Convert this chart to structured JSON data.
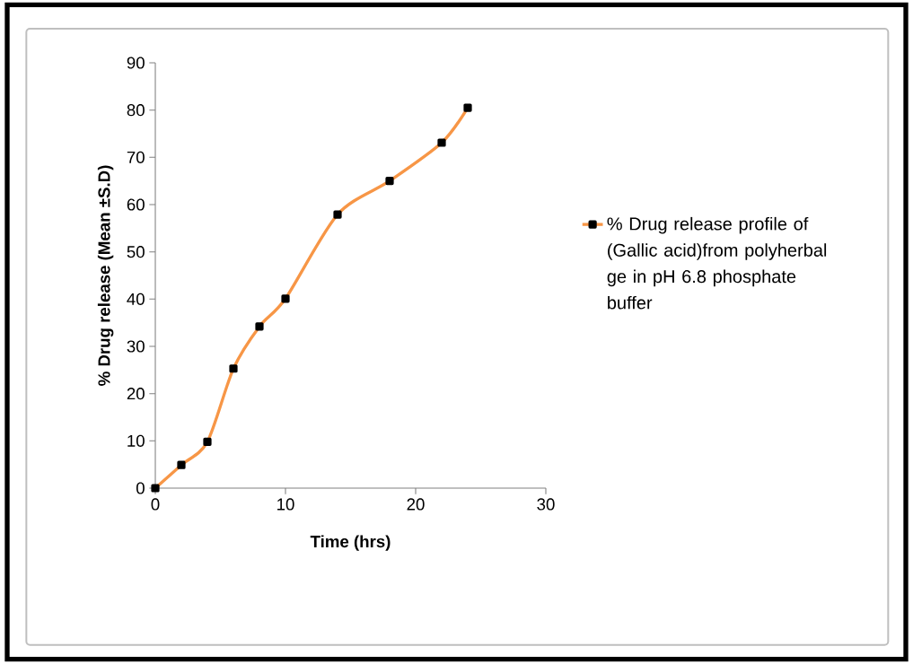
{
  "chart_data": {
    "type": "line",
    "xlabel": "Time (hrs)",
    "ylabel": "% Drug release  (Mean  ±S.D)",
    "x": [
      0,
      2,
      4,
      6,
      8,
      10,
      14,
      18,
      22,
      24
    ],
    "series": [
      {
        "name": "% Drug release profile of (Gallic acid)from polyherbal ge in pH 6.8 phosphate buffer",
        "color": "#f79646",
        "values": [
          0,
          4.9,
          9.8,
          25.3,
          34.2,
          40.1,
          57.9,
          65,
          73.1,
          80.5
        ]
      }
    ],
    "xlim": [
      0,
      30
    ],
    "xticks": [
      0,
      10,
      20,
      30
    ],
    "ylim": [
      0,
      90
    ],
    "yticks": [
      0,
      10,
      20,
      30,
      40,
      50,
      60,
      70,
      80,
      90
    ],
    "legend": "right",
    "marker": "square",
    "grid": false
  }
}
